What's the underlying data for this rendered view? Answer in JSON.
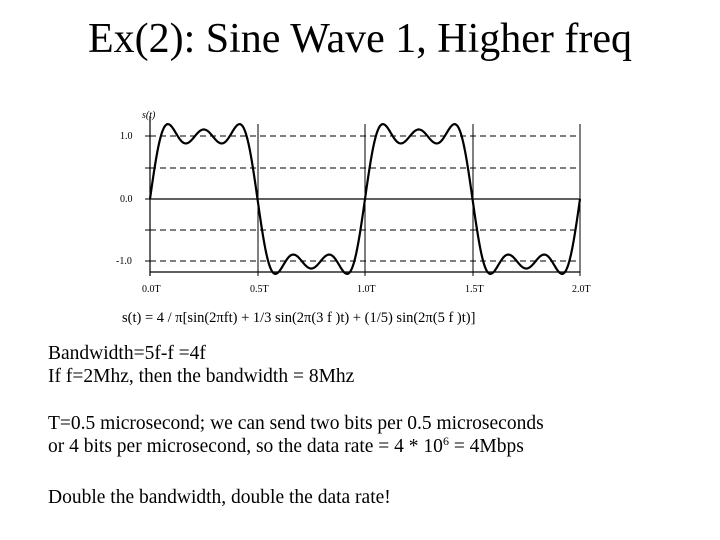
{
  "slide": {
    "title": "Ex(2): Sine Wave 1, Higher freq"
  },
  "figure": {
    "y_axis_label": "s(t)",
    "y_tick_labels": [
      "1.0",
      "0.0",
      "-1.0"
    ],
    "x_tick_labels": [
      "0.0T",
      "0.5T",
      "1.0T",
      "1.5T",
      "2.0T"
    ],
    "formula": "s(t) = 4 / π[sin(2πft) + 1/3 sin(2π(3 f )t) + (1/5) sin(2π(5 f )t)]",
    "waveform": {
      "amplitude_scale": "4/π",
      "harmonics": [
        1,
        3,
        5
      ],
      "coefficients": [
        1,
        0.3333,
        0.2
      ],
      "periods_shown": 2,
      "y_range": [
        -1.0,
        1.0
      ]
    }
  },
  "text": {
    "line1": "Bandwidth=5f-f =4f",
    "line2": "If f=2Mhz, then the bandwidth = 8Mhz",
    "line3": "T=0.5 microsecond; we can send two bits per 0.5 microseconds",
    "line4_prefix": "or 4 bits per microsecond, so the data rate = 4 * 10",
    "line4_exp": "6",
    "line4_suffix": " = 4Mbps",
    "line5": "Double the bandwidth, double the data rate!"
  }
}
